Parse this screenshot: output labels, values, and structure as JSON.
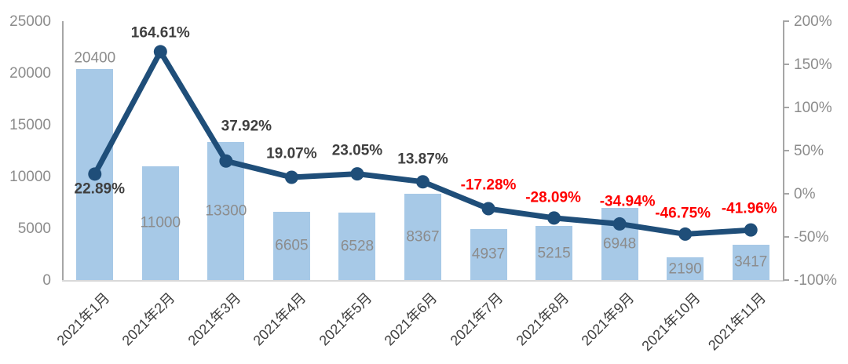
{
  "chart_data": {
    "type": "bar",
    "subtype": "bar-with-line-combo",
    "title": "",
    "categories": [
      "2021年1月",
      "2021年2月",
      "2021年3月",
      "2021年4月",
      "2021年5月",
      "2021年6月",
      "2021年7月",
      "2021年8月",
      "2021年9月",
      "2021年10月",
      "2021年11月"
    ],
    "series": [
      {
        "name": "monthly-volume-bars",
        "type": "bar",
        "values": [
          20400,
          11000,
          13300,
          6605,
          6528,
          8367,
          4937,
          5215,
          6948,
          2190,
          3417
        ],
        "labels": [
          "20400",
          "11000",
          "13300",
          "6605",
          "6528",
          "8367",
          "4937",
          "5215",
          "6948",
          "2190",
          "3417"
        ]
      },
      {
        "name": "growth-rate-line",
        "type": "line",
        "values": [
          22.89,
          164.61,
          37.92,
          19.07,
          23.05,
          13.87,
          -17.28,
          -28.09,
          -34.94,
          -46.75,
          -41.96
        ],
        "labels": [
          "22.89%",
          "164.61%",
          "37.92%",
          "19.07%",
          "23.05%",
          "13.87%",
          "-17.28%",
          "-28.09%",
          "-34.94%",
          "-46.75%",
          "-41.96%"
        ]
      }
    ],
    "left_axis": {
      "min": 0,
      "max": 25000,
      "ticks": [
        "0",
        "5000",
        "10000",
        "15000",
        "20000",
        "25000"
      ]
    },
    "right_axis": {
      "min": -100,
      "max": 200,
      "ticks": [
        "-100%",
        "-50%",
        "0%",
        "50%",
        "100%",
        "150%",
        "200%"
      ]
    },
    "legend": "none",
    "grid": "off",
    "colors": {
      "bar_fill": "#A7C9E7",
      "line": "#1F4E79",
      "positive_label": "#3F3F3F",
      "negative_label": "#FF0000",
      "bar_value_label": "#8C8C8C",
      "axis_tick_label": "#8C8C8C",
      "category_label": "#3F3F3F",
      "axis_line": "#A6A6A6",
      "baseline": "#D9D9D9"
    }
  }
}
